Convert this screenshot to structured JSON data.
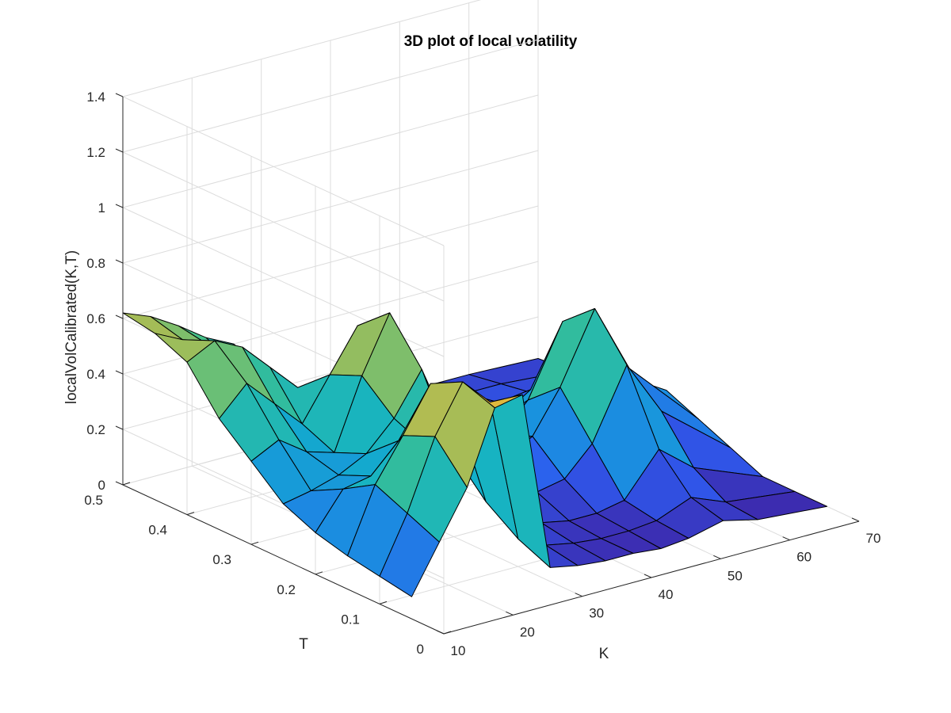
{
  "chart_data": {
    "type": "surface",
    "title": "3D plot of local volatility",
    "xlabel": "K",
    "ylabel": "T",
    "zlabel": "localVolCalibrated(K,T)",
    "xlim": [
      10,
      70
    ],
    "ylim": [
      0,
      0.5
    ],
    "zlim": [
      0,
      1.4
    ],
    "x_ticks": [
      "10",
      "20",
      "30",
      "40",
      "50",
      "60",
      "70"
    ],
    "y_ticks": [
      "0",
      "0.1",
      "0.2",
      "0.3",
      "0.4",
      "0.5"
    ],
    "z_ticks": [
      "0",
      "0.2",
      "0.4",
      "0.6",
      "0.8",
      "1",
      "1.2",
      "1.4"
    ],
    "grid": true,
    "colormap": [
      "#3e26a8",
      "#2e5aef",
      "#1a8fe0",
      "#12b2c8",
      "#3dc08e",
      "#9abd5c",
      "#e3b93b",
      "#f9f914"
    ],
    "K": [
      10,
      14,
      18,
      22,
      26,
      30,
      34,
      38,
      42,
      46,
      50,
      55,
      60,
      70
    ],
    "T": [
      0.05,
      0.1,
      0.15,
      0.2,
      0.25,
      0.3,
      0.35,
      0.4,
      0.45,
      0.5
    ],
    "Z": [
      [
        0.08,
        0.25,
        0.42,
        0.68,
        0.7,
        0.05,
        0.03,
        0.02,
        0.02,
        0.01,
        0.02,
        0.05,
        0.02,
        0.0
      ],
      [
        0.1,
        0.3,
        0.55,
        0.72,
        0.62,
        0.1,
        0.05,
        0.03,
        0.02,
        0.02,
        0.03,
        0.08,
        0.03,
        0.0
      ],
      [
        0.12,
        0.35,
        0.5,
        0.66,
        0.52,
        0.18,
        0.1,
        0.05,
        0.03,
        0.03,
        0.05,
        0.2,
        0.1,
        0.0
      ],
      [
        0.15,
        0.28,
        0.3,
        0.4,
        0.35,
        0.3,
        0.15,
        0.1,
        0.08,
        0.1,
        0.2,
        0.45,
        0.25,
        0.05
      ],
      [
        0.2,
        0.22,
        0.25,
        0.3,
        0.4,
        0.55,
        0.3,
        0.2,
        0.15,
        0.2,
        0.35,
        0.6,
        0.35,
        0.1
      ],
      [
        0.3,
        0.35,
        0.28,
        0.25,
        0.5,
        0.7,
        0.45,
        0.25,
        0.18,
        0.15,
        0.25,
        0.5,
        0.3,
        0.15
      ],
      [
        0.4,
        0.5,
        0.4,
        0.3,
        0.45,
        0.6,
        0.4,
        0.2,
        0.12,
        0.1,
        0.12,
        0.2,
        0.18,
        0.12
      ],
      [
        0.55,
        0.6,
        0.55,
        0.45,
        0.35,
        0.3,
        0.25,
        0.15,
        0.1,
        0.08,
        0.08,
        0.1,
        0.1,
        0.08
      ],
      [
        0.6,
        0.55,
        0.5,
        0.4,
        0.3,
        0.25,
        0.2,
        0.12,
        0.1,
        0.06,
        0.06,
        0.08,
        0.08,
        0.06
      ],
      [
        0.62,
        0.58,
        0.52,
        0.45,
        0.4,
        0.3,
        0.2,
        0.12,
        0.08,
        0.05,
        0.05,
        0.06,
        0.06,
        0.05
      ]
    ]
  }
}
